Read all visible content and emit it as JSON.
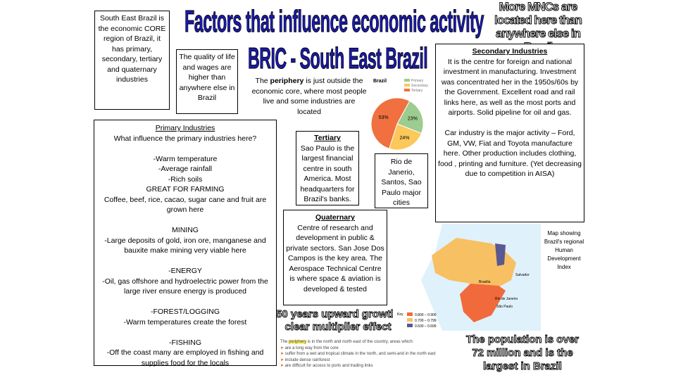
{
  "title": "Factors that influence economic activity",
  "subtitle": "BRIC - South East Brazil",
  "top_right": "More MNCs are located here than anywhere else in Brazil",
  "core_box": "South East Brazil is the economic CORE region of Brazil, it has primary, secondary, tertiary and quaternary industries",
  "quality_box": "The quality of life and wages are higher than anywhere else in Brazil",
  "periphery_text": {
    "pre": "The ",
    "bold": "periphery",
    "post": " is just outside the economic core, where most people live and some industries are located"
  },
  "primary": {
    "heading": "Primary Industries",
    "question": "What influence the primary industries here?",
    "lines": [
      "-Warm temperature",
      "-Average rainfall",
      "-Rich soils",
      "GREAT FOR FARMING",
      "Coffee, beef, rice, cacao, sugar cane and fruit are grown here",
      "",
      "MINING",
      "-Large deposits of gold, iron ore, manganese and bauxite make mining very viable here",
      "",
      "-ENERGY",
      "-Oil, gas offshore and hydroelectric power from the large river ensure energy is produced",
      "",
      "-FOREST/LOGGING",
      "-Warm temperatures create the forest",
      "",
      "-FISHING",
      "-Off the coast many are employed in fishing and supplies food for the locals"
    ]
  },
  "tertiary": {
    "heading": "Tertiary",
    "text": "Sao Paulo is the largest financial centre in south America. Most headquarters for Brazil's banks."
  },
  "cities": "Rio de Janerio, Santos, Sao Paulo major cities",
  "quaternary": {
    "heading": "Quaternary",
    "text": "Centre of research and development in public & private sectors. San Jose Dos Campos is the key area. The Aerospace Technical Centre is where space & aviation is developed & tested"
  },
  "secondary": {
    "heading": "Secondary Industries",
    "text": "It is the centre for foreign and national investment in manufacturing. Investment was concentrated her in the 1950s/60s by the Government. Excellent road and rail links here, as well as the most ports and airports. Solid pipeline for oil and gas.",
    "text2": "Car industry is the major activity – Ford, GM, VW, Fiat and Toyota manufacture here. Other production includes clothing, food , printing and furniture. (Yet decreasing due to competition in AISA)"
  },
  "pie": {
    "title": "Brazil",
    "legend": [
      "Primary",
      "Secondary",
      "Tertiary"
    ],
    "values": [
      23,
      24,
      53
    ],
    "labels": [
      "23%",
      "24%",
      "53%"
    ],
    "colors": [
      "#9ccc8f",
      "#fbc85a",
      "#f07040"
    ]
  },
  "growth": "50 years upward growth, clear multiplier effect",
  "map": {
    "caption": "Map showing Brazil's regional Human Development Index",
    "legend_title": "Key",
    "legend": [
      "0.800 – 0.900",
      "0.700 – 0.799",
      "0.600 – 0.699"
    ],
    "colors": [
      "#f06a3c",
      "#f7c062",
      "#5a5890"
    ],
    "cities": [
      "Brasilia",
      "Salvador",
      "Rio de Janeiro",
      "São Paulo"
    ]
  },
  "periphery_note": {
    "intro_pre": "The ",
    "intro_hl": "periphery",
    "intro_post": " is in the north and north east of the country, areas which:",
    "items": [
      "are a long way from the core",
      "suffer from a wet and tropical climate in the north, and semi-arid in the north east",
      "include dense rainforest",
      "are difficult for access to ports and trading links"
    ]
  },
  "population": "The population is over 72 million and is the largest in Brazil"
}
